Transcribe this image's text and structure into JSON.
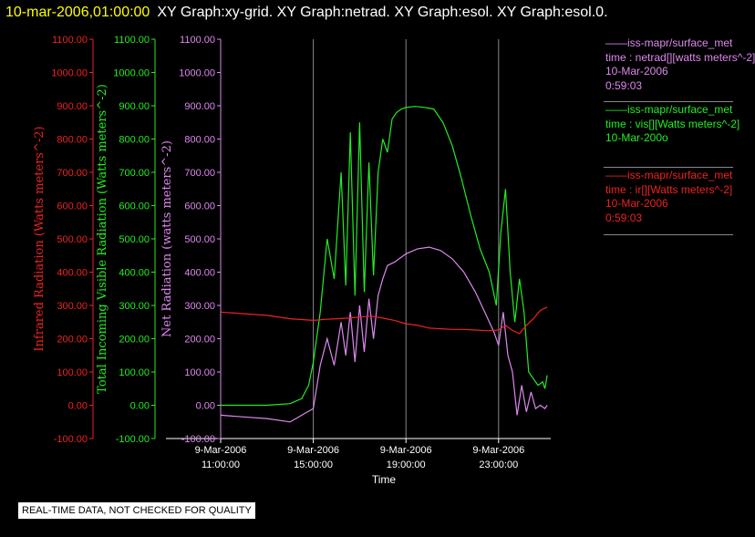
{
  "header": {
    "date": "10-mar-2006,01:00:00",
    "title": "XY Graph:xy-grid.  XY Graph:netrad.  XY Graph:esol.  XY Graph:esol.0."
  },
  "legend": [
    {
      "color": "#dd88ee",
      "lines": [
        "——iss-mapr/surface_met",
        "time : netrad[][watts meters^-2]",
        "10-Mar-2006",
        "0:59:03"
      ]
    },
    {
      "color": "#22ee22",
      "lines": [
        "——iss-mapr/surface_met",
        "time : vis[][Watts meters^-2]",
        "10-Mar-200o"
      ]
    },
    {
      "color": "#ee2222",
      "lines": [
        "——iss-mapr/surface_met",
        "time : ir[][Watts meters^-2]",
        "10-Mar-2006",
        "0:59:03"
      ]
    }
  ],
  "notice": "REAL-TIME DATA, NOT CHECKED FOR QUALITY",
  "chart_data": {
    "type": "line",
    "xlabel": "Time",
    "x_ticks": [
      {
        "hours": 11,
        "date": "9-Mar-2006",
        "time": "11:00:00"
      },
      {
        "hours": 15,
        "date": "9-Mar-2006",
        "time": "15:00:00"
      },
      {
        "hours": 19,
        "date": "9-Mar-2006",
        "time": "19:00:00"
      },
      {
        "hours": 23,
        "date": "9-Mar-2006",
        "time": "23:00:00"
      }
    ],
    "xlim_hours": [
      11,
      25.2
    ],
    "grid": "vertical lines at major x ticks",
    "axes": [
      {
        "label": "Infrared Radiation (Watts meters^-2)",
        "color": "#ee2222",
        "ylim": [
          -100,
          1100
        ],
        "ticks": [
          "-100.00",
          "0.00",
          "100.00",
          "200.00",
          "300.00",
          "400.00",
          "500.00",
          "600.00",
          "700.00",
          "800.00",
          "900.00",
          "1000.00",
          "1100.00"
        ]
      },
      {
        "label": "Total Incoming Visible Radiation (Watts meters^-2)",
        "color": "#22ee22",
        "ylim": [
          -100,
          1100
        ],
        "ticks": [
          "-100.00",
          "0.00",
          "100.00",
          "200.00",
          "300.00",
          "400.00",
          "500.00",
          "600.00",
          "700.00",
          "800.00",
          "900.00",
          "1000.00",
          "1100.00"
        ]
      },
      {
        "label": "Net Radiation (watts meters^-2)",
        "color": "#dd88ee",
        "ylim": [
          -100,
          1100
        ],
        "ticks": [
          "-100.00",
          "0.00",
          "100.00",
          "200.00",
          "300.00",
          "400.00",
          "500.00",
          "600.00",
          "700.00",
          "800.00",
          "900.00",
          "1000.00",
          "1100.00"
        ]
      }
    ],
    "series": [
      {
        "color": "#22ee22",
        "x": [
          11,
          12,
          13,
          14,
          14.5,
          14.8,
          15,
          15.3,
          15.6,
          15.9,
          16.2,
          16.4,
          16.6,
          16.8,
          17.0,
          17.2,
          17.4,
          17.6,
          17.8,
          18.0,
          18.2,
          18.4,
          18.5,
          18.6,
          18.8,
          19.0,
          19.4,
          19.8,
          20.2,
          20.6,
          21.0,
          21.4,
          21.8,
          22.2,
          22.6,
          22.9,
          23.1,
          23.3,
          23.5,
          23.7,
          23.9,
          24.1,
          24.3,
          24.5,
          24.7,
          24.9,
          25.0,
          25.1
        ],
        "y": [
          0,
          0,
          0,
          5,
          20,
          60,
          130,
          280,
          500,
          380,
          700,
          360,
          820,
          330,
          850,
          340,
          730,
          390,
          700,
          800,
          760,
          860,
          870,
          880,
          890,
          895,
          898,
          895,
          890,
          850,
          780,
          680,
          570,
          470,
          400,
          300,
          520,
          650,
          400,
          250,
          380,
          280,
          100,
          80,
          60,
          70,
          50,
          90
        ]
      },
      {
        "color": "#dd88ee",
        "x": [
          11,
          12,
          13,
          14,
          14.5,
          15,
          15.3,
          15.6,
          15.9,
          16.2,
          16.4,
          16.6,
          16.8,
          17.0,
          17.2,
          17.4,
          17.6,
          17.8,
          18.0,
          18.2,
          18.5,
          19.0,
          19.5,
          20.0,
          20.5,
          21.0,
          21.5,
          22.0,
          22.4,
          22.8,
          23.0,
          23.2,
          23.4,
          23.6,
          23.8,
          24.0,
          24.2,
          24.4,
          24.6,
          24.8,
          25.0,
          25.1
        ],
        "y": [
          -30,
          -35,
          -40,
          -50,
          -30,
          -10,
          120,
          200,
          120,
          250,
          150,
          280,
          130,
          300,
          160,
          320,
          200,
          330,
          380,
          420,
          430,
          455,
          470,
          475,
          465,
          440,
          400,
          340,
          280,
          220,
          180,
          280,
          150,
          100,
          -30,
          60,
          -20,
          40,
          -10,
          0,
          -10,
          0
        ]
      },
      {
        "color": "#ee2222",
        "x": [
          11,
          12,
          13,
          14,
          15,
          15.5,
          16,
          16.5,
          17,
          17.5,
          18,
          18.5,
          19,
          19.5,
          20,
          20.5,
          21,
          21.5,
          22,
          22.5,
          23,
          23.3,
          23.6,
          23.9,
          24.2,
          24.5,
          24.8,
          25.1
        ],
        "y": [
          280,
          275,
          270,
          260,
          255,
          258,
          260,
          262,
          265,
          268,
          262,
          255,
          245,
          240,
          232,
          230,
          228,
          228,
          226,
          224,
          226,
          240,
          225,
          215,
          240,
          260,
          285,
          295
        ]
      }
    ]
  }
}
